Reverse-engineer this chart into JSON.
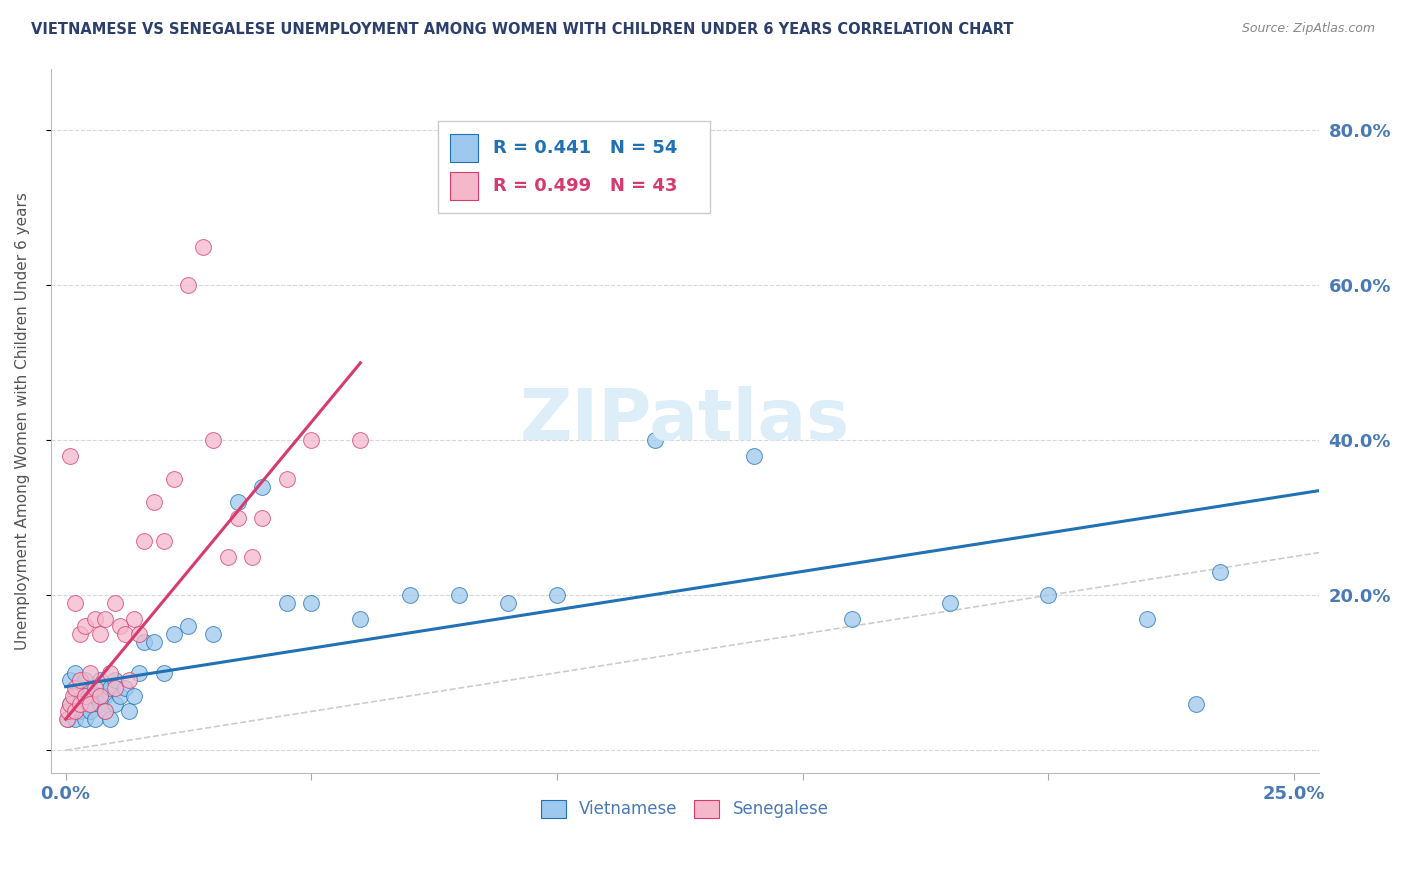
{
  "title": "VIETNAMESE VS SENEGALESE UNEMPLOYMENT AMONG WOMEN WITH CHILDREN UNDER 6 YEARS CORRELATION CHART",
  "source": "Source: ZipAtlas.com",
  "ylabel": "Unemployment Among Women with Children Under 6 years",
  "xlim": [
    -0.003,
    0.255
  ],
  "ylim": [
    -0.03,
    0.88
  ],
  "viet_color": "#9ec8ed",
  "sene_color": "#f5b8cb",
  "viet_line_color": "#2171b5",
  "sene_line_color": "#d63b6e",
  "ref_line_color": "#cccccc",
  "title_color": "#2c3e6b",
  "source_color": "#888888",
  "axis_color": "#4a7ab5",
  "legend_R_viet": "R = 0.441",
  "legend_N_viet": "N = 54",
  "legend_R_sene": "R = 0.499",
  "legend_N_sene": "N = 43",
  "watermark_color": "#ddeef8",
  "viet_x": [
    0.0005,
    0.001,
    0.001,
    0.0015,
    0.002,
    0.002,
    0.002,
    0.003,
    0.003,
    0.003,
    0.004,
    0.004,
    0.004,
    0.005,
    0.005,
    0.005,
    0.006,
    0.006,
    0.007,
    0.007,
    0.008,
    0.008,
    0.009,
    0.009,
    0.01,
    0.01,
    0.011,
    0.012,
    0.013,
    0.014,
    0.015,
    0.016,
    0.018,
    0.02,
    0.022,
    0.025,
    0.03,
    0.035,
    0.04,
    0.045,
    0.05,
    0.06,
    0.07,
    0.08,
    0.09,
    0.1,
    0.12,
    0.14,
    0.16,
    0.18,
    0.2,
    0.22,
    0.23,
    0.235
  ],
  "viet_y": [
    0.04,
    0.06,
    0.09,
    0.05,
    0.07,
    0.1,
    0.04,
    0.06,
    0.08,
    0.05,
    0.07,
    0.09,
    0.04,
    0.06,
    0.08,
    0.05,
    0.07,
    0.04,
    0.06,
    0.09,
    0.05,
    0.07,
    0.08,
    0.04,
    0.06,
    0.09,
    0.07,
    0.08,
    0.05,
    0.07,
    0.1,
    0.14,
    0.14,
    0.1,
    0.15,
    0.16,
    0.15,
    0.32,
    0.34,
    0.19,
    0.19,
    0.17,
    0.2,
    0.2,
    0.19,
    0.2,
    0.4,
    0.38,
    0.17,
    0.19,
    0.2,
    0.17,
    0.06,
    0.23
  ],
  "sene_x": [
    0.0003,
    0.0005,
    0.001,
    0.001,
    0.0015,
    0.002,
    0.002,
    0.002,
    0.003,
    0.003,
    0.003,
    0.004,
    0.004,
    0.005,
    0.005,
    0.006,
    0.006,
    0.007,
    0.007,
    0.008,
    0.008,
    0.009,
    0.01,
    0.01,
    0.011,
    0.012,
    0.013,
    0.014,
    0.015,
    0.016,
    0.018,
    0.02,
    0.022,
    0.025,
    0.028,
    0.03,
    0.033,
    0.035,
    0.038,
    0.04,
    0.045,
    0.05,
    0.06
  ],
  "sene_y": [
    0.04,
    0.05,
    0.06,
    0.38,
    0.07,
    0.05,
    0.08,
    0.19,
    0.06,
    0.09,
    0.15,
    0.07,
    0.16,
    0.06,
    0.1,
    0.08,
    0.17,
    0.07,
    0.15,
    0.05,
    0.17,
    0.1,
    0.08,
    0.19,
    0.16,
    0.15,
    0.09,
    0.17,
    0.15,
    0.27,
    0.32,
    0.27,
    0.35,
    0.6,
    0.65,
    0.4,
    0.25,
    0.3,
    0.25,
    0.3,
    0.35,
    0.4,
    0.4
  ],
  "viet_trendline_x": [
    0.0,
    0.255
  ],
  "viet_trendline_y": [
    0.082,
    0.335
  ],
  "sene_trendline_x": [
    0.0,
    0.06
  ],
  "sene_trendline_y": [
    0.04,
    0.5
  ],
  "ref_line_x": [
    0.0,
    0.88
  ],
  "ref_line_y": [
    0.0,
    0.88
  ]
}
